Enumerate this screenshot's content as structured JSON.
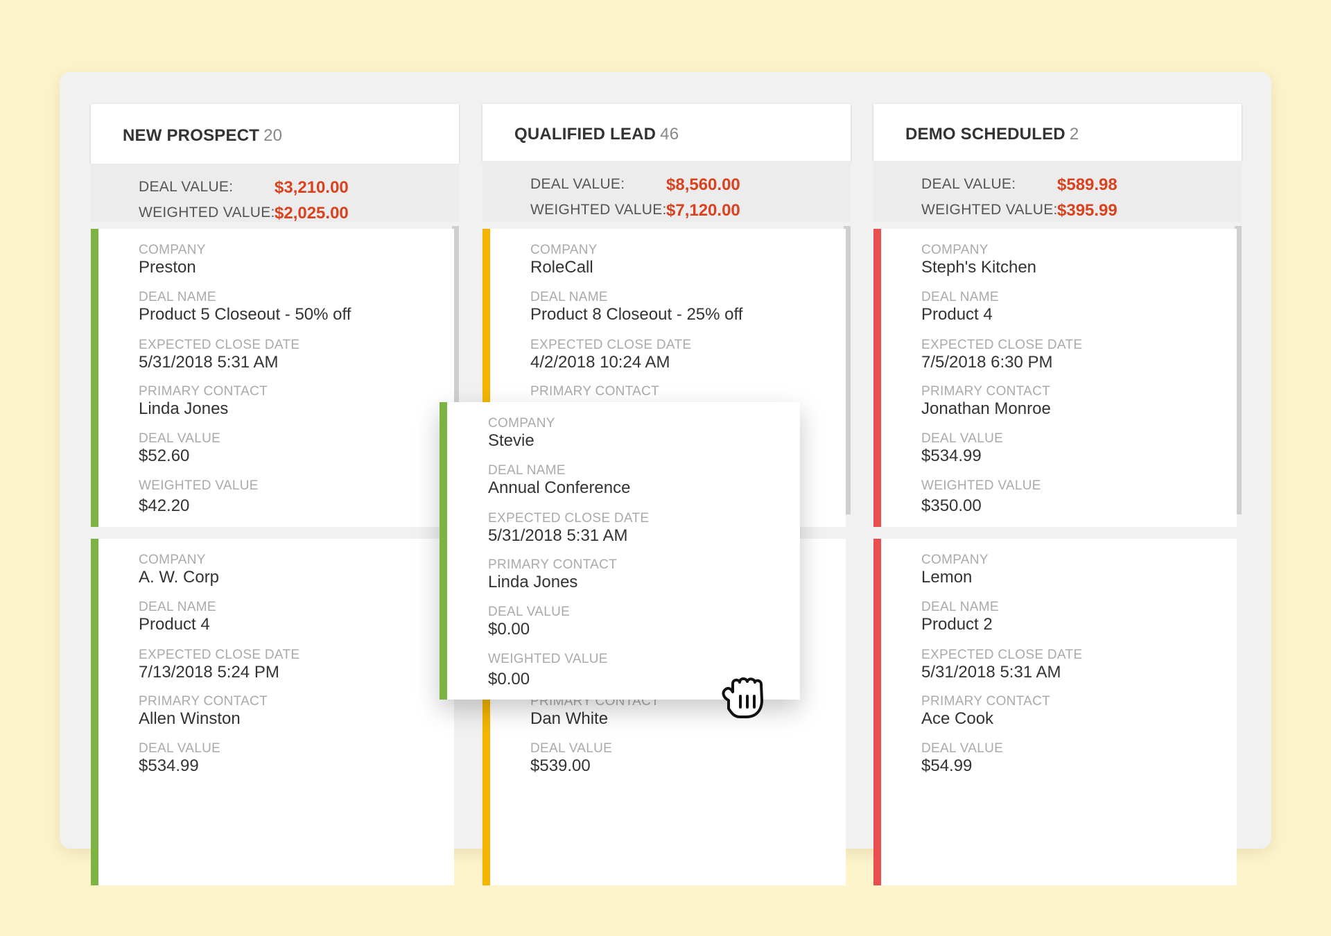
{
  "colors": {
    "green": "#7cb342",
    "yellow": "#f5b400",
    "red": "#e94f4f",
    "accent_value": "#d9421f",
    "background": "#fdf4cc"
  },
  "labels": {
    "deal_value": "DEAL VALUE:",
    "weighted_value": "WEIGHTED VALUE:",
    "company": "COMPANY",
    "deal_name": "DEAL NAME",
    "expected_close_date": "EXPECTED CLOSE DATE",
    "primary_contact": "PRIMARY CONTACT",
    "card_deal_value": "DEAL VALUE",
    "card_weighted_value": "WEIGHTED VALUE"
  },
  "columns": [
    {
      "title": "NEW PROSPECT",
      "count": "20",
      "deal_value": "$3,210.00",
      "weighted_value": "$2,025.00",
      "cards": [
        {
          "company": "Preston",
          "deal_name": "Product 5 Closeout - 50% off",
          "close_date": "5/31/2018 5:31 AM",
          "contact": "Linda Jones",
          "deal_value": "$52.60",
          "weighted_value": "$42.20"
        },
        {
          "company": "A. W. Corp",
          "deal_name": "Product 4",
          "close_date": "7/13/2018 5:24 PM",
          "contact": "Allen Winston",
          "deal_value": "$534.99"
        }
      ]
    },
    {
      "title": "QUALIFIED LEAD",
      "count": "46",
      "deal_value": "$8,560.00",
      "weighted_value": "$7,120.00",
      "cards": [
        {
          "company": "RoleCall",
          "deal_name": "Product 8 Closeout - 25% off",
          "close_date": "4/2/2018 10:24 AM"
        },
        {
          "contact": "Dan White",
          "deal_value": "$539.00"
        }
      ]
    },
    {
      "title": "DEMO SCHEDULED",
      "count": "2",
      "deal_value": "$589.98",
      "weighted_value": "$395.99",
      "cards": [
        {
          "company": "Steph's Kitchen",
          "deal_name": "Product 4",
          "close_date": "7/5/2018 6:30 PM",
          "contact": "Jonathan Monroe",
          "deal_value": "$534.99",
          "weighted_value": "$350.00"
        },
        {
          "company": "Lemon",
          "deal_name": "Product 2",
          "close_date": "5/31/2018 5:31 AM",
          "contact": "Ace Cook",
          "deal_value": "$54.99"
        }
      ]
    }
  ],
  "dragged_card": {
    "company": "Stevie",
    "deal_name": "Annual Conference",
    "close_date": "5/31/2018 5:31 AM",
    "contact": "Linda Jones",
    "deal_value": "$0.00",
    "weighted_value": "$0.00"
  },
  "cursor": "grab-hand-icon"
}
